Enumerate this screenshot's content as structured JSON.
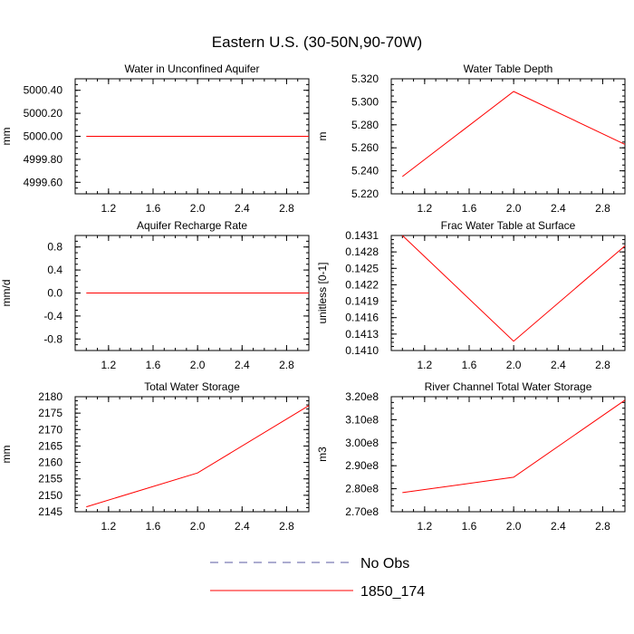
{
  "figure_title": "Eastern U.S. (30-50N,90-70W)",
  "legend": {
    "entries": [
      {
        "label": "No Obs",
        "style": "dashed",
        "color": "#5a5aa0"
      },
      {
        "label": "1850_174",
        "style": "solid",
        "color": "#ff0000"
      }
    ]
  },
  "chart_data": [
    {
      "type": "line",
      "title": "Water in Unconfined Aquifer",
      "ylabel": "mm",
      "xlim": [
        0.9,
        3.0
      ],
      "x_ticks": [
        1.2,
        1.6,
        2.0,
        2.4,
        2.8
      ],
      "x_tick_labels": [
        "1.2",
        "1.6",
        "2.0",
        "2.4",
        "2.8"
      ],
      "ylim": [
        4999.5,
        5000.5
      ],
      "y_ticks": [
        4999.6,
        4999.8,
        5000.0,
        5000.2,
        5000.4
      ],
      "y_tick_labels": [
        "4999.60",
        "4999.80",
        "5000.00",
        "5000.20",
        "5000.40"
      ],
      "series": [
        {
          "name": "1850_174",
          "color": "#ff0000",
          "x": [
            1,
            2,
            3
          ],
          "y": [
            5000.0,
            5000.0,
            5000.0
          ]
        }
      ]
    },
    {
      "type": "line",
      "title": "Water Table Depth",
      "ylabel": "m",
      "xlim": [
        0.9,
        3.0
      ],
      "x_ticks": [
        1.2,
        1.6,
        2.0,
        2.4,
        2.8
      ],
      "x_tick_labels": [
        "1.2",
        "1.6",
        "2.0",
        "2.4",
        "2.8"
      ],
      "ylim": [
        5.22,
        5.32
      ],
      "y_ticks": [
        5.22,
        5.24,
        5.26,
        5.28,
        5.3,
        5.32
      ],
      "y_tick_labels": [
        "5.220",
        "5.240",
        "5.260",
        "5.280",
        "5.300",
        "5.320"
      ],
      "series": [
        {
          "name": "1850_174",
          "color": "#ff0000",
          "x": [
            1,
            2,
            3
          ],
          "y": [
            5.235,
            5.309,
            5.263
          ]
        }
      ]
    },
    {
      "type": "line",
      "title": "Aquifer Recharge Rate",
      "ylabel": "mm/d",
      "xlim": [
        0.9,
        3.0
      ],
      "x_ticks": [
        1.2,
        1.6,
        2.0,
        2.4,
        2.8
      ],
      "x_tick_labels": [
        "1.2",
        "1.6",
        "2.0",
        "2.4",
        "2.8"
      ],
      "ylim": [
        -1.0,
        1.0
      ],
      "y_ticks": [
        -0.8,
        -0.4,
        0.0,
        0.4,
        0.8
      ],
      "y_tick_labels": [
        "-0.8",
        "-0.4",
        "0.0",
        "0.4",
        "0.8"
      ],
      "series": [
        {
          "name": "1850_174",
          "color": "#ff0000",
          "x": [
            1,
            2,
            3
          ],
          "y": [
            0.0,
            0.0,
            0.0
          ]
        }
      ]
    },
    {
      "type": "line",
      "title": "Frac Water Table at Surface",
      "ylabel": "unitless [0-1]",
      "xlim": [
        0.9,
        3.0
      ],
      "x_ticks": [
        1.2,
        1.6,
        2.0,
        2.4,
        2.8
      ],
      "x_tick_labels": [
        "1.2",
        "1.6",
        "2.0",
        "2.4",
        "2.8"
      ],
      "ylim": [
        0.141,
        0.1431
      ],
      "y_ticks": [
        0.141,
        0.1413,
        0.1416,
        0.1419,
        0.1422,
        0.1425,
        0.1428,
        0.1431
      ],
      "y_tick_labels": [
        "0.1410",
        "0.1413",
        "0.1416",
        "0.1419",
        "0.1422",
        "0.1425",
        "0.1428",
        "0.1431"
      ],
      "series": [
        {
          "name": "1850_174",
          "color": "#ff0000",
          "x": [
            1,
            2,
            3
          ],
          "y": [
            0.1431,
            0.14117,
            0.14291
          ]
        }
      ]
    },
    {
      "type": "line",
      "title": "Total Water Storage",
      "ylabel": "mm",
      "xlim": [
        0.9,
        3.0
      ],
      "x_ticks": [
        1.2,
        1.6,
        2.0,
        2.4,
        2.8
      ],
      "x_tick_labels": [
        "1.2",
        "1.6",
        "2.0",
        "2.4",
        "2.8"
      ],
      "ylim": [
        2145,
        2180
      ],
      "y_ticks": [
        2145,
        2150,
        2155,
        2160,
        2165,
        2170,
        2175,
        2180
      ],
      "y_tick_labels": [
        "2145",
        "2150",
        "2155",
        "2160",
        "2165",
        "2170",
        "2175",
        "2180"
      ],
      "series": [
        {
          "name": "1850_174",
          "color": "#ff0000",
          "x": [
            1,
            2,
            3
          ],
          "y": [
            2146.5,
            2156.8,
            2177.3
          ]
        }
      ]
    },
    {
      "type": "line",
      "title": "River Channel Total Water Storage",
      "ylabel": "m3",
      "xlim": [
        0.9,
        3.0
      ],
      "x_ticks": [
        1.2,
        1.6,
        2.0,
        2.4,
        2.8
      ],
      "x_tick_labels": [
        "1.2",
        "1.6",
        "2.0",
        "2.4",
        "2.8"
      ],
      "ylim": [
        270000000,
        320000000
      ],
      "y_ticks": [
        270000000,
        280000000,
        290000000,
        300000000,
        310000000,
        320000000
      ],
      "y_tick_labels": [
        "2.70e8",
        "2.80e8",
        "2.90e8",
        "3.00e8",
        "3.10e8",
        "3.20e8"
      ],
      "series": [
        {
          "name": "1850_174",
          "color": "#ff0000",
          "x": [
            1,
            2,
            3
          ],
          "y": [
            278300000,
            285000000,
            318500000
          ]
        }
      ]
    }
  ]
}
